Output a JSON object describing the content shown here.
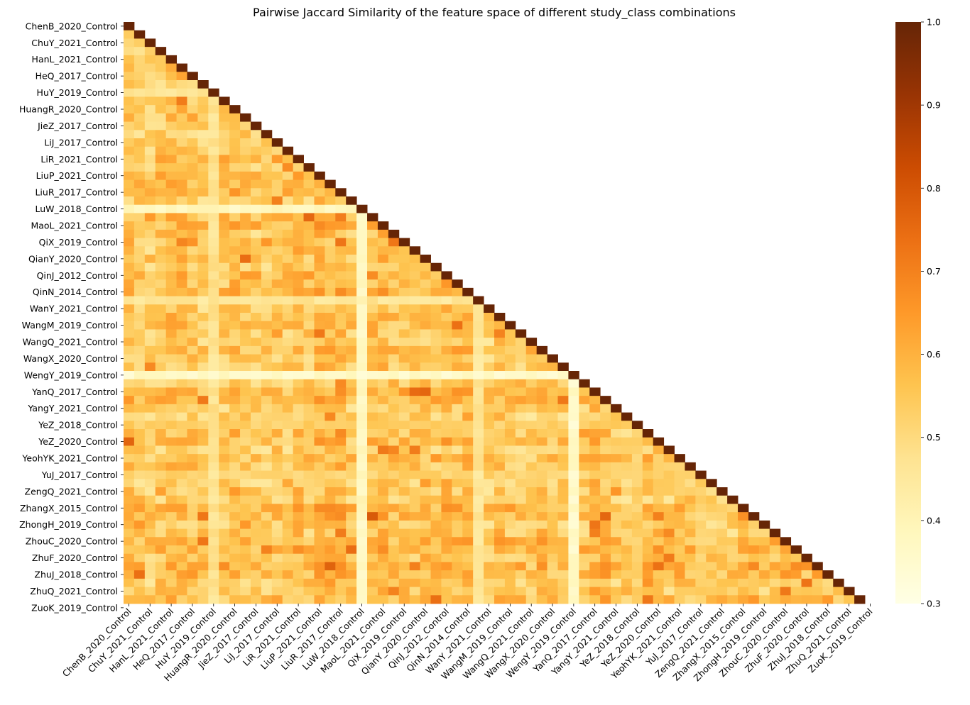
{
  "chart_data": {
    "type": "heatmap",
    "title": "Pairwise Jaccard Similarity of the feature space of different study_class combinations",
    "colormap": "YlOrBr",
    "mask": "upper-triangle",
    "n": 70,
    "row_tick_labels": [
      "ChenB_2020_Control",
      "ChuY_2021_Control",
      "HanL_2021_Control",
      "HeQ_2017_Control",
      "HuY_2019_Control",
      "HuangR_2020_Control",
      "JieZ_2017_Control",
      "LiJ_2017_Control",
      "LiR_2021_Control",
      "LiuP_2021_Control",
      "LiuR_2017_Control",
      "LuW_2018_Control",
      "MaoL_2021_Control",
      "QiX_2019_Control",
      "QianY_2020_Control",
      "QinJ_2012_Control",
      "QinN_2014_Control",
      "WanY_2021_Control",
      "WangM_2019_Control",
      "WangQ_2021_Control",
      "WangX_2020_Control",
      "WengY_2019_Control",
      "YanQ_2017_Control",
      "YangY_2021_Control",
      "YeZ_2018_Control",
      "YeZ_2020_Control",
      "YeohYK_2021_Control",
      "YuJ_2017_Control",
      "ZengQ_2021_Control",
      "ZhangX_2015_Control",
      "ZhongH_2019_Control",
      "ZhouC_2020_Control",
      "ZhuF_2020_Control",
      "ZhuJ_2018_Control",
      "ZhuQ_2021_Control",
      "ZuoK_2019_Control"
    ],
    "col_tick_labels": [
      "ChenB_2020_Control",
      "ChuY_2021_Control",
      "HanL_2021_Control",
      "HeQ_2017_Control",
      "HuY_2019_Control",
      "HuangR_2020_Control",
      "JieZ_2017_Control",
      "LiJ_2017_Control",
      "LiR_2021_Control",
      "LiuP_2021_Control",
      "LiuR_2017_Control",
      "LuW_2018_Control",
      "MaoL_2021_Control",
      "QiX_2019_Control",
      "QianY_2020_Control",
      "QinJ_2012_Control",
      "QinN_2014_Control",
      "WanY_2021_Control",
      "WangM_2019_Control",
      "WangQ_2021_Control",
      "WangX_2020_Control",
      "WengY_2019_Control",
      "YanQ_2017_Control",
      "YangY_2021_Control",
      "YeZ_2018_Control",
      "YeZ_2020_Control",
      "YeohYK_2021_Control",
      "YuJ_2017_Control",
      "ZengQ_2021_Control",
      "ZhangX_2015_Control",
      "ZhongH_2019_Control",
      "ZhouC_2020_Control",
      "ZhuF_2020_Control",
      "ZhuJ_2018_Control",
      "ZhuQ_2021_Control",
      "ZuoK_2019_Control"
    ],
    "tick_every": 2,
    "diagonal_value": 1.0,
    "low_similarity_rows": [
      {
        "index": 8,
        "level": 0.47
      },
      {
        "index": 22,
        "level": 0.38
      },
      {
        "index": 33,
        "level": 0.46
      },
      {
        "index": 42,
        "level": 0.36
      },
      {
        "index": 48,
        "level": 0.53
      },
      {
        "index": 54,
        "level": 0.52
      }
    ],
    "colorbar": {
      "min": 0.3,
      "max": 1.0,
      "ticks": [
        "0.3",
        "0.4",
        "0.5",
        "0.6",
        "0.7",
        "0.8",
        "0.9",
        "1.0"
      ]
    },
    "xlabel": "",
    "ylabel": ""
  }
}
